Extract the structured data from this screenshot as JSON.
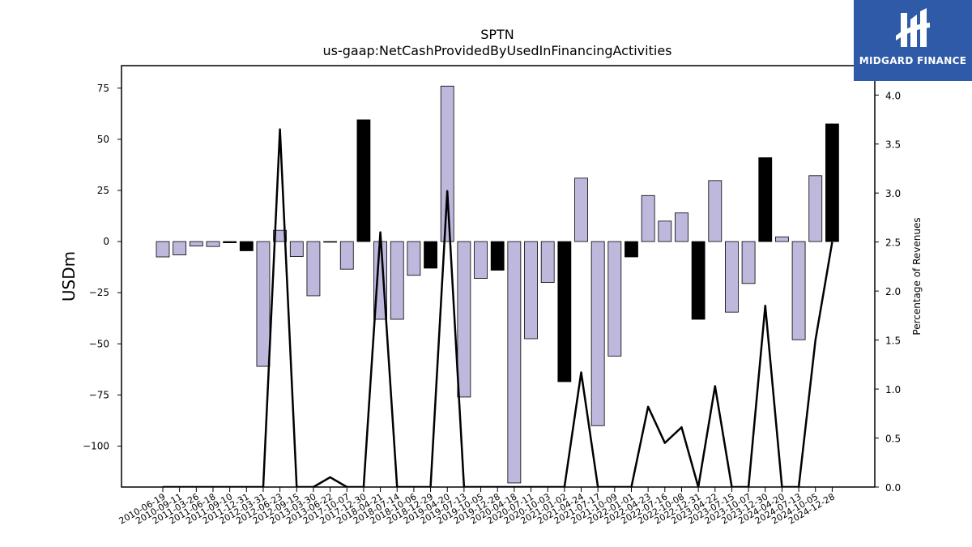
{
  "brand": {
    "name": "MIDGARD FINANCE",
    "bg_color": "#2f5aa8"
  },
  "chart_data": {
    "type": "bar",
    "title": "SPTN",
    "subtitle": "us-gaap:NetCashProvidedByUsedInFinancingActivities",
    "ylabel": "USDm",
    "y2label": "Percentage of Revenues",
    "ylim": [
      -120,
      86
    ],
    "y2lim": [
      0.0,
      4.3
    ],
    "yticks": [
      75,
      50,
      25,
      0,
      -25,
      -50,
      -75,
      -100
    ],
    "y2ticks": [
      0.0,
      0.5,
      1.0,
      1.5,
      2.0,
      2.5,
      3.0,
      3.5,
      4.0
    ],
    "bar_color_positive_growth": "#bdb8dc",
    "bar_color_highlight": "#000000",
    "line_color": "#000000",
    "categories": [
      "2010-06-19",
      "2010-09-11",
      "2011-03-26",
      "2011-06-18",
      "2011-09-10",
      "2011-12-31",
      "2012-03-31",
      "2012-06-23",
      "2012-09-15",
      "2013-03-30",
      "2013-06-22",
      "2017-10-07",
      "2017-12-30",
      "2018-04-21",
      "2018-07-14",
      "2018-10-06",
      "2018-12-29",
      "2019-04-20",
      "2019-07-13",
      "2019-10-05",
      "2019-12-28",
      "2020-04-18",
      "2020-07-11",
      "2020-10-03",
      "2021-01-02",
      "2021-04-24",
      "2021-07-17",
      "2021-10-09",
      "2022-01-01",
      "2022-04-23",
      "2022-07-16",
      "2022-10-08",
      "2022-12-31",
      "2023-04-22",
      "2023-07-15",
      "2023-10-07",
      "2023-12-30",
      "2024-04-20",
      "2024-07-13",
      "2024-10-05",
      "2024-12-28"
    ],
    "series": [
      {
        "values": [
          -7.5,
          -6.5,
          -2.2,
          -2.4,
          -0.6,
          -4.5,
          -61,
          5.5,
          -7.3,
          -26.5,
          -0.2,
          -13.5,
          59.5,
          -38,
          -38,
          -16.5,
          -13,
          76,
          -76,
          -18,
          -14,
          -118,
          -47.5,
          -20,
          -68.5,
          31,
          -90,
          -56,
          -7.5,
          22.5,
          10,
          14,
          -38,
          29.8,
          -34.5,
          -20.5,
          41,
          2.3,
          -48,
          32.2,
          57.5
        ],
        "highlight": [
          false,
          false,
          false,
          false,
          true,
          true,
          false,
          false,
          false,
          false,
          false,
          false,
          true,
          false,
          false,
          false,
          true,
          false,
          false,
          false,
          true,
          false,
          false,
          false,
          true,
          false,
          false,
          false,
          true,
          false,
          false,
          false,
          true,
          false,
          false,
          false,
          true,
          false,
          false,
          false,
          true
        ]
      },
      {
        "axis": "right",
        "type": "line",
        "values": [
          0,
          0,
          0,
          0,
          0,
          0,
          0,
          3.65,
          0,
          0,
          0.1,
          0,
          0,
          2.6,
          0,
          0,
          0,
          3.02,
          0,
          0,
          0,
          0,
          0,
          0,
          0,
          1.17,
          0,
          0,
          0,
          0.82,
          0.45,
          0.61,
          0,
          1.03,
          0,
          0,
          1.85,
          0,
          0,
          1.5,
          2.5
        ]
      }
    ]
  }
}
